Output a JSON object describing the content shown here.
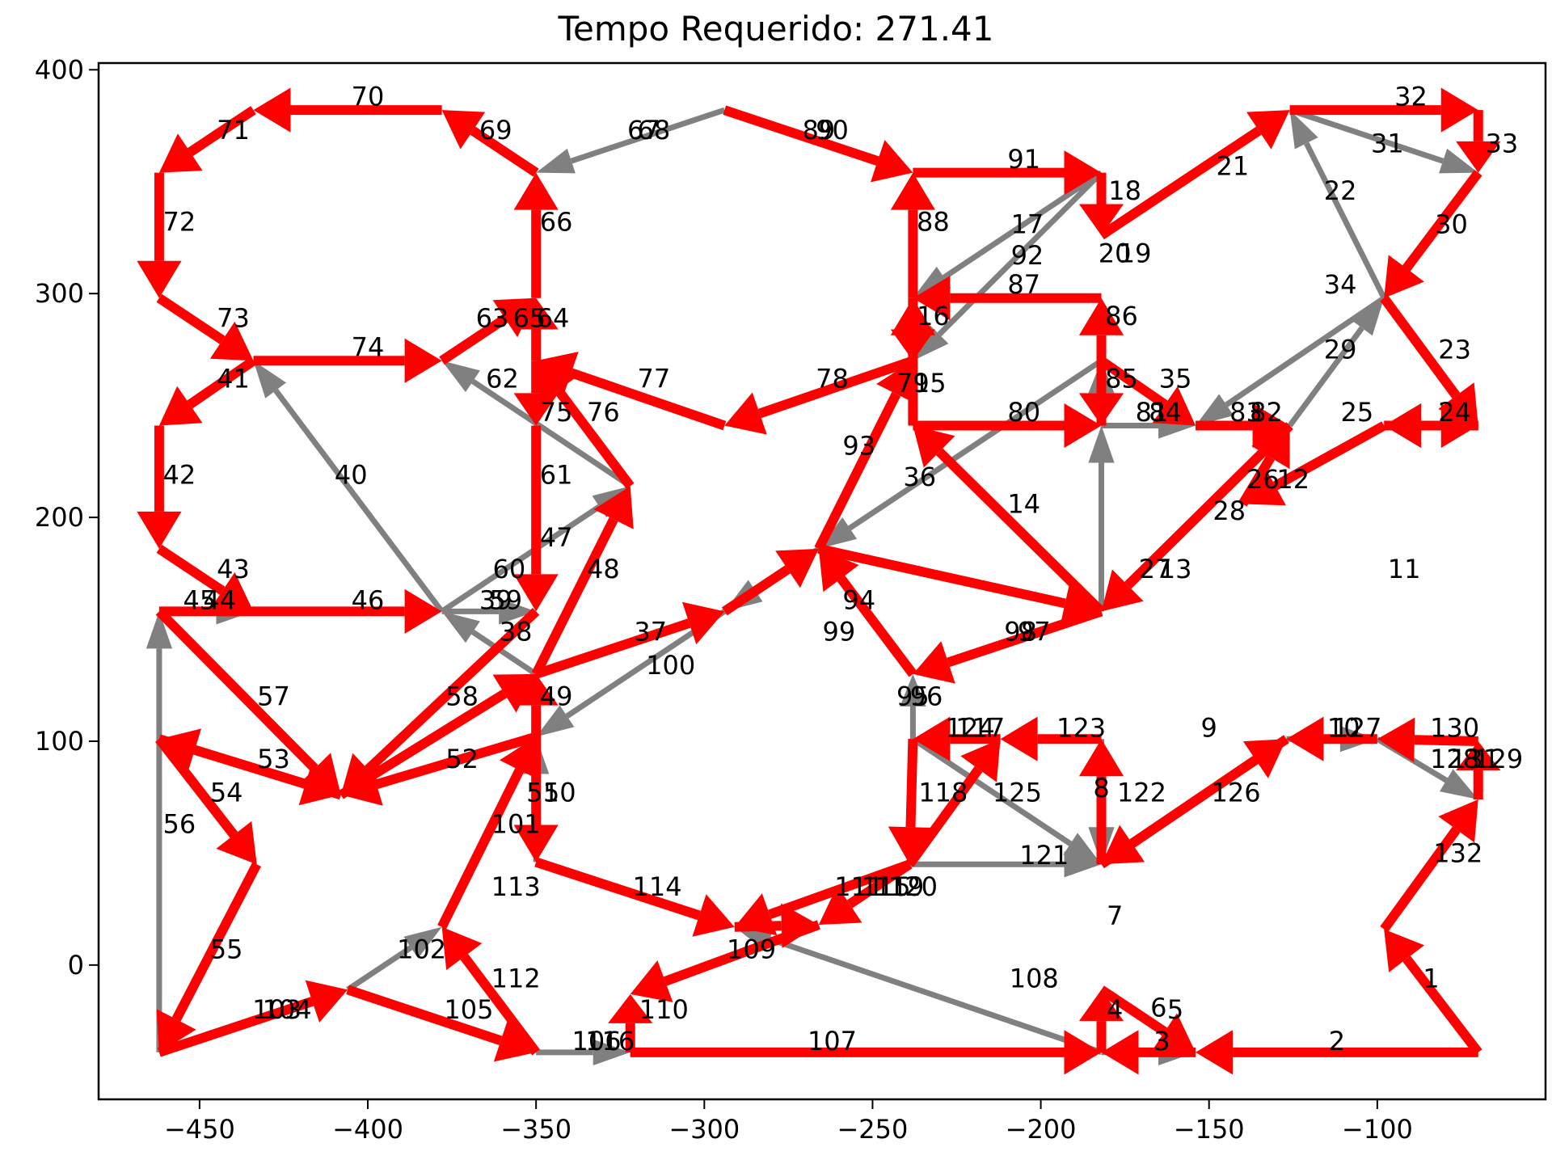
{
  "chart_data": {
    "type": "line",
    "title": "Tempo Requerido: 271.41",
    "xlabel": "",
    "ylabel": "",
    "xlim": [
      -480,
      -50
    ],
    "ylim": [
      -60,
      403
    ],
    "xticks": [
      -450,
      -400,
      -350,
      -300,
      -250,
      -200,
      -150,
      -100
    ],
    "yticks": [
      0,
      100,
      200,
      300,
      400
    ],
    "grid": false,
    "legend": false,
    "colors": {
      "red": "#ff0000",
      "gray": "#808080"
    },
    "nodes": {
      "N1": [
        -70,
        -39
      ],
      "N2": [
        -98,
        16
      ],
      "N3": [
        -70,
        74
      ],
      "N4": [
        -70,
        100
      ],
      "N5": [
        -100,
        101
      ],
      "N6": [
        -127,
        101
      ],
      "N7": [
        -182,
        45
      ],
      "N8": [
        -182,
        101
      ],
      "N9": [
        -212,
        101
      ],
      "N10": [
        -238,
        101
      ],
      "N11": [
        -239,
        45
      ],
      "N12": [
        -291,
        17
      ],
      "N13": [
        -266,
        18
      ],
      "N14": [
        -350,
        46
      ],
      "N15": [
        -350,
        102
      ],
      "N16": [
        -408,
        76
      ],
      "N17": [
        -462,
        101
      ],
      "N18": [
        -433,
        45
      ],
      "N19": [
        -462,
        -39
      ],
      "N20": [
        -406,
        -11
      ],
      "N21": [
        -350,
        -39
      ],
      "N22": [
        -322,
        -39
      ],
      "N23": [
        -182,
        -39
      ],
      "N24": [
        -154,
        -39
      ],
      "N25": [
        -322,
        -13
      ],
      "N26": [
        -378,
        17
      ],
      "N27": [
        -182,
        -11
      ],
      "N28": [
        -238,
        130
      ],
      "N29": [
        -350,
        130
      ],
      "N30": [
        -294,
        158
      ],
      "N31": [
        -266,
        186
      ],
      "N32": [
        -182,
        158
      ],
      "N33": [
        -378,
        158
      ],
      "N34": [
        -350,
        158
      ],
      "N35": [
        -462,
        158
      ],
      "N36": [
        -434,
        158
      ],
      "N37": [
        -462,
        186
      ],
      "N38": [
        -462,
        241
      ],
      "N39": [
        -434,
        270
      ],
      "N40": [
        -462,
        298
      ],
      "N41": [
        -462,
        354
      ],
      "N42": [
        -434,
        382
      ],
      "N43": [
        -378,
        382
      ],
      "N44": [
        -350,
        354
      ],
      "N45": [
        -294,
        382
      ],
      "N46": [
        -238,
        354
      ],
      "N47": [
        -182,
        354
      ],
      "N48": [
        -126,
        382
      ],
      "N49": [
        -70,
        382
      ],
      "N50": [
        -70,
        354
      ],
      "N51": [
        -98,
        298
      ],
      "N52": [
        -70,
        241
      ],
      "N53": [
        -98,
        241
      ],
      "N54": [
        -126,
        241
      ],
      "N55": [
        -154,
        241
      ],
      "N56": [
        -182,
        241
      ],
      "N57": [
        -238,
        241
      ],
      "N58": [
        -238,
        298
      ],
      "N59": [
        -182,
        298
      ],
      "N60": [
        -182,
        270
      ],
      "N61": [
        -322,
        214
      ],
      "N62": [
        -350,
        241
      ],
      "N63": [
        -350,
        270
      ],
      "N64": [
        -378,
        270
      ],
      "N65": [
        -350,
        298
      ],
      "N66": [
        -294,
        241
      ],
      "N67": [
        -238,
        270
      ],
      "N68": [
        -182,
        326
      ],
      "N69": [
        -140,
        206
      ]
    },
    "edges_red": [
      [
        "N1",
        "N2"
      ],
      [
        "N2",
        "N3"
      ],
      [
        "N3",
        "N4"
      ],
      [
        "N4",
        "N5"
      ],
      [
        "N5",
        "N6"
      ],
      [
        "N6",
        "N7"
      ],
      [
        "N7",
        "N8"
      ],
      [
        "N8",
        "N9"
      ],
      [
        "N9",
        "N10"
      ],
      [
        "N10",
        "N11"
      ],
      [
        "N11",
        "N9"
      ],
      [
        "N11",
        "N12"
      ],
      [
        "N12",
        "N13"
      ],
      [
        "N14",
        "N12"
      ],
      [
        "N15",
        "N14"
      ],
      [
        "N15",
        "N16"
      ],
      [
        "N16",
        "N17"
      ],
      [
        "N17",
        "N18"
      ],
      [
        "N18",
        "N19"
      ],
      [
        "N19",
        "N20"
      ],
      [
        "N20",
        "N21"
      ],
      [
        "N21",
        "N26"
      ],
      [
        "N26",
        "N15"
      ],
      [
        "N15",
        "N29"
      ],
      [
        "N29",
        "N30"
      ],
      [
        "N30",
        "N31"
      ],
      [
        "N31",
        "N32"
      ],
      [
        "N32",
        "N28"
      ],
      [
        "N28",
        "N31"
      ],
      [
        "N31",
        "N67"
      ],
      [
        "N67",
        "N66"
      ],
      [
        "N66",
        "N63"
      ],
      [
        "N63",
        "N62"
      ],
      [
        "N62",
        "N34"
      ],
      [
        "N34",
        "N16"
      ],
      [
        "N16",
        "N29"
      ],
      [
        "N29",
        "N61"
      ],
      [
        "N61",
        "N63"
      ],
      [
        "N63",
        "N65"
      ],
      [
        "N65",
        "N44"
      ],
      [
        "N44",
        "N43"
      ],
      [
        "N43",
        "N42"
      ],
      [
        "N42",
        "N41"
      ],
      [
        "N41",
        "N40"
      ],
      [
        "N40",
        "N39"
      ],
      [
        "N39",
        "N64"
      ],
      [
        "N64",
        "N65"
      ],
      [
        "N39",
        "N38"
      ],
      [
        "N38",
        "N37"
      ],
      [
        "N37",
        "N36"
      ],
      [
        "N35",
        "N33"
      ],
      [
        "N35",
        "N16"
      ],
      [
        "N17",
        "N18"
      ],
      [
        "N17",
        "N16"
      ],
      [
        "N45",
        "N46"
      ],
      [
        "N46",
        "N47"
      ],
      [
        "N47",
        "N68"
      ],
      [
        "N68",
        "N48"
      ],
      [
        "N48",
        "N49"
      ],
      [
        "N49",
        "N50"
      ],
      [
        "N50",
        "N51"
      ],
      [
        "N51",
        "N52"
      ],
      [
        "N52",
        "N53"
      ],
      [
        "N53",
        "N69"
      ],
      [
        "N69",
        "N54"
      ],
      [
        "N54",
        "N32"
      ],
      [
        "N32",
        "N57"
      ],
      [
        "N57",
        "N58"
      ],
      [
        "N58",
        "N46"
      ],
      [
        "N59",
        "N58"
      ],
      [
        "N56",
        "N59"
      ],
      [
        "N57",
        "N56"
      ],
      [
        "N55",
        "N54"
      ],
      [
        "N60",
        "N56"
      ],
      [
        "N60",
        "N55"
      ],
      [
        "N53",
        "N52"
      ],
      [
        "N1",
        "N24"
      ],
      [
        "N24",
        "N23"
      ],
      [
        "N22",
        "N23"
      ],
      [
        "N23",
        "N27"
      ],
      [
        "N27",
        "N24"
      ],
      [
        "N22",
        "N25"
      ],
      [
        "N13",
        "N25"
      ],
      [
        "N11",
        "N13"
      ],
      [
        "N7",
        "N6"
      ],
      [
        "N52",
        "N53"
      ],
      [
        "N58",
        "N67"
      ]
    ],
    "edges_gray": [
      [
        "N19",
        "N35"
      ],
      [
        "N19",
        "N20"
      ],
      [
        "N20",
        "N26"
      ],
      [
        "N26",
        "N15"
      ],
      [
        "N14",
        "N15"
      ],
      [
        "N21",
        "N22"
      ],
      [
        "N23",
        "N24"
      ],
      [
        "N23",
        "N12"
      ],
      [
        "N29",
        "N33"
      ],
      [
        "N33",
        "N34"
      ],
      [
        "N33",
        "N39"
      ],
      [
        "N33",
        "N61"
      ],
      [
        "N61",
        "N64"
      ],
      [
        "N30",
        "N15"
      ],
      [
        "N31",
        "N30"
      ],
      [
        "N60",
        "N31"
      ],
      [
        "N56",
        "N60"
      ],
      [
        "N32",
        "N56"
      ],
      [
        "N56",
        "N55"
      ],
      [
        "N55",
        "N54"
      ],
      [
        "N54",
        "N51"
      ],
      [
        "N51",
        "N55"
      ],
      [
        "N50",
        "N51"
      ],
      [
        "N48",
        "N50"
      ],
      [
        "N51",
        "N48"
      ],
      [
        "N47",
        "N58"
      ],
      [
        "N58",
        "N67"
      ],
      [
        "N47",
        "N67"
      ],
      [
        "N45",
        "N44"
      ],
      [
        "N45",
        "N46"
      ],
      [
        "N53",
        "N69"
      ],
      [
        "N5",
        "N3"
      ],
      [
        "N11",
        "N7"
      ],
      [
        "N10",
        "N7"
      ],
      [
        "N8",
        "N7"
      ],
      [
        "N28",
        "N31"
      ],
      [
        "N35",
        "N36"
      ],
      [
        "N6",
        "N5"
      ],
      [
        "N10",
        "N28"
      ]
    ],
    "edge_labels": [
      {
        "text": "1",
        "x": -84,
        "y": -6
      },
      {
        "text": "2",
        "x": -112,
        "y": -34
      },
      {
        "text": "3",
        "x": -164,
        "y": -34
      },
      {
        "text": "4",
        "x": -178,
        "y": -20
      },
      {
        "text": "5",
        "x": -160,
        "y": -20
      },
      {
        "text": "6",
        "x": -165,
        "y": -19
      },
      {
        "text": "7",
        "x": -178,
        "y": 22
      },
      {
        "text": "8",
        "x": -182,
        "y": 79
      },
      {
        "text": "9",
        "x": -150,
        "y": 106
      },
      {
        "text": "10",
        "x": -110,
        "y": 106
      },
      {
        "text": "11",
        "x": -92,
        "y": 177
      },
      {
        "text": "12",
        "x": -125,
        "y": 217
      },
      {
        "text": "13",
        "x": -160,
        "y": 177
      },
      {
        "text": "14",
        "x": -205,
        "y": 206
      },
      {
        "text": "15",
        "x": -233,
        "y": 260
      },
      {
        "text": "16",
        "x": -232,
        "y": 290
      },
      {
        "text": "17",
        "x": -204,
        "y": 331
      },
      {
        "text": "18",
        "x": -175,
        "y": 346
      },
      {
        "text": "19",
        "x": -172,
        "y": 318
      },
      {
        "text": "20",
        "x": -178,
        "y": 318
      },
      {
        "text": "21",
        "x": -143,
        "y": 357
      },
      {
        "text": "22",
        "x": -111,
        "y": 346
      },
      {
        "text": "23",
        "x": -77,
        "y": 275
      },
      {
        "text": "24",
        "x": -77,
        "y": 247
      },
      {
        "text": "25",
        "x": -106,
        "y": 247
      },
      {
        "text": "26",
        "x": -134,
        "y": 217
      },
      {
        "text": "27",
        "x": -166,
        "y": 177
      },
      {
        "text": "28",
        "x": -144,
        "y": 203
      },
      {
        "text": "29",
        "x": -111,
        "y": 275
      },
      {
        "text": "30",
        "x": -78,
        "y": 331
      },
      {
        "text": "31",
        "x": -97,
        "y": 367
      },
      {
        "text": "32",
        "x": -90,
        "y": 388
      },
      {
        "text": "33",
        "x": -63,
        "y": 367
      },
      {
        "text": "34",
        "x": -111,
        "y": 304
      },
      {
        "text": "35",
        "x": -160,
        "y": 262
      },
      {
        "text": "36",
        "x": -236,
        "y": 218
      },
      {
        "text": "37",
        "x": -316,
        "y": 149
      },
      {
        "text": "38",
        "x": -356,
        "y": 149
      },
      {
        "text": "39",
        "x": -362,
        "y": 163
      },
      {
        "text": "40",
        "x": -405,
        "y": 219
      },
      {
        "text": "41",
        "x": -440,
        "y": 262
      },
      {
        "text": "42",
        "x": -456,
        "y": 219
      },
      {
        "text": "43",
        "x": -440,
        "y": 177
      },
      {
        "text": "44",
        "x": -444,
        "y": 163
      },
      {
        "text": "45",
        "x": -450,
        "y": 163
      },
      {
        "text": "46",
        "x": -400,
        "y": 163
      },
      {
        "text": "47",
        "x": -344,
        "y": 191
      },
      {
        "text": "48",
        "x": -330,
        "y": 177
      },
      {
        "text": "49",
        "x": -344,
        "y": 120
      },
      {
        "text": "50",
        "x": -343,
        "y": 77
      },
      {
        "text": "51",
        "x": -348,
        "y": 77
      },
      {
        "text": "52",
        "x": -372,
        "y": 92
      },
      {
        "text": "53",
        "x": -428,
        "y": 92
      },
      {
        "text": "54",
        "x": -442,
        "y": 77
      },
      {
        "text": "55",
        "x": -442,
        "y": 7
      },
      {
        "text": "56",
        "x": -456,
        "y": 63
      },
      {
        "text": "57",
        "x": -428,
        "y": 120
      },
      {
        "text": "58",
        "x": -372,
        "y": 120
      },
      {
        "text": "59",
        "x": -359,
        "y": 163
      },
      {
        "text": "60",
        "x": -358,
        "y": 177
      },
      {
        "text": "61",
        "x": -344,
        "y": 219
      },
      {
        "text": "62",
        "x": -360,
        "y": 262
      },
      {
        "text": "63",
        "x": -363,
        "y": 289
      },
      {
        "text": "64",
        "x": -345,
        "y": 289
      },
      {
        "text": "65",
        "x": -352,
        "y": 289
      },
      {
        "text": "66",
        "x": -344,
        "y": 332
      },
      {
        "text": "67",
        "x": -318,
        "y": 373
      },
      {
        "text": "68",
        "x": -315,
        "y": 373
      },
      {
        "text": "69",
        "x": -362,
        "y": 373
      },
      {
        "text": "70",
        "x": -400,
        "y": 388
      },
      {
        "text": "71",
        "x": -440,
        "y": 373
      },
      {
        "text": "72",
        "x": -456,
        "y": 332
      },
      {
        "text": "73",
        "x": -440,
        "y": 289
      },
      {
        "text": "74",
        "x": -400,
        "y": 276
      },
      {
        "text": "75",
        "x": -344,
        "y": 247
      },
      {
        "text": "76",
        "x": -330,
        "y": 247
      },
      {
        "text": "77",
        "x": -315,
        "y": 262
      },
      {
        "text": "78",
        "x": -262,
        "y": 262
      },
      {
        "text": "79",
        "x": -238,
        "y": 260
      },
      {
        "text": "80",
        "x": -205,
        "y": 247
      },
      {
        "text": "81",
        "x": -167,
        "y": 247
      },
      {
        "text": "82",
        "x": -133,
        "y": 247
      },
      {
        "text": "83",
        "x": -139,
        "y": 247
      },
      {
        "text": "84",
        "x": -163,
        "y": 247
      },
      {
        "text": "85",
        "x": -176,
        "y": 262
      },
      {
        "text": "86",
        "x": -176,
        "y": 290
      },
      {
        "text": "87",
        "x": -205,
        "y": 304
      },
      {
        "text": "88",
        "x": -232,
        "y": 332
      },
      {
        "text": "89",
        "x": -266,
        "y": 373
      },
      {
        "text": "90",
        "x": -262,
        "y": 373
      },
      {
        "text": "91",
        "x": -205,
        "y": 360
      },
      {
        "text": "92",
        "x": -204,
        "y": 317
      },
      {
        "text": "93",
        "x": -254,
        "y": 232
      },
      {
        "text": "94",
        "x": -254,
        "y": 163
      },
      {
        "text": "95",
        "x": -238,
        "y": 120
      },
      {
        "text": "96",
        "x": -234,
        "y": 120
      },
      {
        "text": "97",
        "x": -202,
        "y": 149
      },
      {
        "text": "98",
        "x": -206,
        "y": 149
      },
      {
        "text": "99",
        "x": -260,
        "y": 149
      },
      {
        "text": "100",
        "x": -310,
        "y": 134
      },
      {
        "text": "101",
        "x": -356,
        "y": 63
      },
      {
        "text": "102",
        "x": -384,
        "y": 7
      },
      {
        "text": "103",
        "x": -427,
        "y": -20
      },
      {
        "text": "104",
        "x": -424,
        "y": -20
      },
      {
        "text": "105",
        "x": -370,
        "y": -20
      },
      {
        "text": "106",
        "x": -332,
        "y": -34
      },
      {
        "text": "107",
        "x": -262,
        "y": -34
      },
      {
        "text": "108",
        "x": -202,
        "y": -6
      },
      {
        "text": "109",
        "x": -286,
        "y": 7
      },
      {
        "text": "110",
        "x": -312,
        "y": -20
      },
      {
        "text": "111",
        "x": -254,
        "y": 35
      },
      {
        "text": "112",
        "x": -356,
        "y": -6
      },
      {
        "text": "113",
        "x": -356,
        "y": 35
      },
      {
        "text": "114",
        "x": -314,
        "y": 35
      },
      {
        "text": "115",
        "x": -246,
        "y": 35
      },
      {
        "text": "116",
        "x": -328,
        "y": -34
      },
      {
        "text": "117",
        "x": -218,
        "y": 106
      },
      {
        "text": "118",
        "x": -229,
        "y": 77
      },
      {
        "text": "119",
        "x": -242,
        "y": 35
      },
      {
        "text": "120",
        "x": -238,
        "y": 35
      },
      {
        "text": "121",
        "x": -199,
        "y": 49
      },
      {
        "text": "122",
        "x": -170,
        "y": 77
      },
      {
        "text": "123",
        "x": -188,
        "y": 106
      },
      {
        "text": "124",
        "x": -221,
        "y": 106
      },
      {
        "text": "125",
        "x": -207,
        "y": 77
      },
      {
        "text": "126",
        "x": -142,
        "y": 77
      },
      {
        "text": "127",
        "x": -106,
        "y": 106
      },
      {
        "text": "128",
        "x": -77,
        "y": 92
      },
      {
        "text": "129",
        "x": -64,
        "y": 92
      },
      {
        "text": "130",
        "x": -77,
        "y": 106
      },
      {
        "text": "131",
        "x": -71,
        "y": 92
      },
      {
        "text": "132",
        "x": -76,
        "y": 50
      }
    ]
  }
}
